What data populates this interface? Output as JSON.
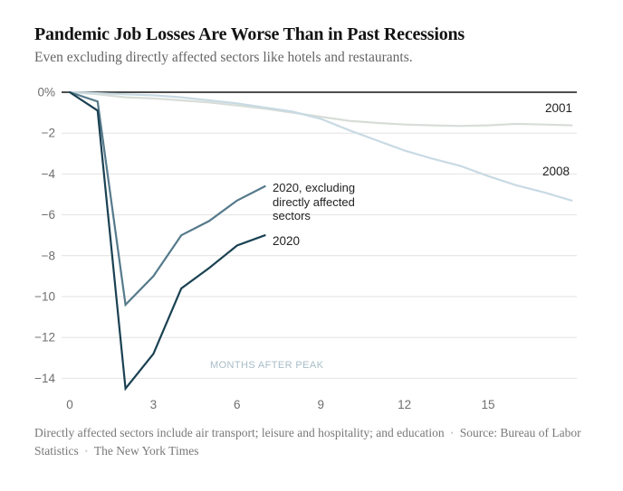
{
  "header": {
    "title": "Pandemic Job Losses Are Worse Than in Past Recessions",
    "subtitle": "Even excluding directly affected sectors like hotels and restaurants."
  },
  "chart_data": {
    "type": "line",
    "title": "Pandemic Job Losses Are Worse Than in Past Recessions",
    "subtitle": "Even excluding directly affected sectors like hotels and restaurants.",
    "xlabel": "MONTHS AFTER PEAK",
    "ylabel": "",
    "xlim": [
      0,
      18.5
    ],
    "ylim": [
      -15.3,
      0.6
    ],
    "grid": true,
    "legend_position": "inline-annotations",
    "x_ticks": [
      0,
      3,
      6,
      9,
      12,
      15
    ],
    "y_ticks": {
      "values": [
        0,
        -2,
        -4,
        -6,
        -8,
        -10,
        -12,
        -14
      ],
      "labels": [
        "0%",
        "−2",
        "−4",
        "−6",
        "−8",
        "−10",
        "−12",
        "−14"
      ]
    },
    "series": [
      {
        "name": "2001",
        "color": "#d8ddd8",
        "x": [
          0,
          1,
          2,
          3,
          4,
          5,
          6,
          7,
          8,
          9,
          10,
          11,
          12,
          13,
          14,
          15,
          16,
          17,
          18
        ],
        "values": [
          0,
          -0.1,
          -0.25,
          -0.3,
          -0.4,
          -0.5,
          -0.65,
          -0.8,
          -1.0,
          -1.2,
          -1.4,
          -1.5,
          -1.58,
          -1.62,
          -1.65,
          -1.62,
          -1.55,
          -1.58,
          -1.62
        ]
      },
      {
        "name": "2008",
        "color": "#c8dae3",
        "x": [
          0,
          1,
          2,
          3,
          4,
          5,
          6,
          7,
          8,
          9,
          10,
          11,
          12,
          13,
          14,
          15,
          16,
          17,
          18
        ],
        "values": [
          0,
          -0.05,
          -0.1,
          -0.15,
          -0.25,
          -0.4,
          -0.55,
          -0.75,
          -0.95,
          -1.3,
          -1.85,
          -2.35,
          -2.85,
          -3.25,
          -3.6,
          -4.1,
          -4.55,
          -4.9,
          -5.3
        ]
      },
      {
        "name": "2020, excluding directly affected sectors",
        "color": "#567a8b",
        "x": [
          0,
          1,
          2,
          3,
          4,
          5,
          6,
          7
        ],
        "values": [
          0,
          -0.45,
          -10.4,
          -9.0,
          -7.0,
          -6.3,
          -5.3,
          -4.6
        ]
      },
      {
        "name": "2020",
        "color": "#1a4152",
        "x": [
          0,
          1,
          2,
          3,
          4,
          5,
          6,
          7
        ],
        "values": [
          0,
          -0.9,
          -14.5,
          -12.8,
          -9.6,
          -8.6,
          -7.5,
          -7.0
        ]
      }
    ],
    "annotations": {
      "excluding_label": "2020, excluding\ndirectly affected\nsectors",
      "label_2020": "2020",
      "label_2001": "2001",
      "label_2008": "2008"
    }
  },
  "footer": {
    "note": "Directly affected sectors include air transport; leisure and hospitality; and education",
    "separator": "•",
    "source": "Source: Bureau of Labor Statistics",
    "credit": "The New York Times"
  },
  "colors": {
    "axis": "#141414",
    "grid": "#e2e2e2",
    "tick_text": "#6f6f6f",
    "line_2001": "#d8ddd8",
    "line_2008": "#c8dae3",
    "line_2020_excluding": "#567a8b",
    "line_2020": "#1a4152",
    "x_axis_label": "#a8bdc7"
  }
}
